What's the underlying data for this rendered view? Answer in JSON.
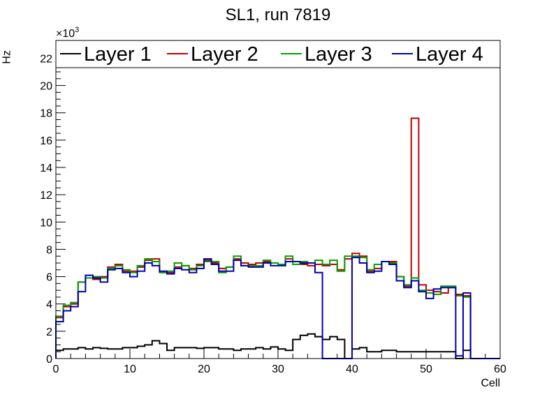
{
  "chart_data": {
    "type": "histogram-step",
    "title": "SL1, run 7819",
    "xlabel": "Cell",
    "ylabel": "Hz",
    "y_exponent_label": "×10",
    "y_exponent_power": "3",
    "xlim": [
      0,
      60
    ],
    "ylim": [
      0,
      23.3
    ],
    "bin_width": 1,
    "x_ticks": [
      0,
      10,
      20,
      30,
      40,
      50,
      60
    ],
    "x_tick_labels": [
      "0",
      "10",
      "20",
      "30",
      "40",
      "50",
      "60"
    ],
    "y_ticks": [
      0,
      2,
      4,
      6,
      8,
      10,
      12,
      14,
      16,
      18,
      20,
      22
    ],
    "y_tick_labels": [
      "0",
      "2",
      "4",
      "6",
      "8",
      "10",
      "12",
      "14",
      "16",
      "18",
      "20",
      "22"
    ],
    "legend_position": "top, full width",
    "series": [
      {
        "name": "Layer 1",
        "color": "#000000",
        "values": [
          0.6,
          0.7,
          0.7,
          0.8,
          0.7,
          0.8,
          0.75,
          0.7,
          0.7,
          0.8,
          0.8,
          0.9,
          1.0,
          1.3,
          1.1,
          0.6,
          0.8,
          0.8,
          0.8,
          0.75,
          0.8,
          0.8,
          0.7,
          0.7,
          0.6,
          0.7,
          0.7,
          0.8,
          0.7,
          0.85,
          0.7,
          0.6,
          1.4,
          1.7,
          1.8,
          1.6,
          1.4,
          1.6,
          1.4,
          0.0,
          0.7,
          0.8,
          0.5,
          0.5,
          0.6,
          0.6,
          0.5,
          0.5,
          0.5,
          0.5,
          0.5,
          0.5,
          0.5,
          0.5,
          0.0,
          0.6,
          0.0,
          0.0,
          0.0,
          0.0
        ]
      },
      {
        "name": "Layer 2",
        "color": "#c00000",
        "values": [
          3.0,
          3.8,
          4.0,
          5.6,
          5.9,
          5.8,
          6.0,
          6.7,
          6.9,
          6.4,
          6.4,
          6.7,
          7.2,
          7.3,
          6.3,
          6.3,
          6.7,
          6.8,
          6.6,
          6.9,
          7.2,
          7.0,
          6.6,
          6.7,
          7.3,
          7.0,
          6.9,
          7.0,
          7.1,
          7.0,
          6.9,
          7.3,
          7.1,
          6.9,
          6.8,
          6.9,
          6.8,
          6.9,
          6.5,
          7.3,
          7.7,
          7.5,
          6.4,
          6.6,
          7.1,
          7.1,
          6.0,
          5.3,
          17.6,
          5.4,
          5.0,
          4.9,
          4.8,
          5.2,
          4.7,
          4.6,
          0.0,
          0.0,
          0.0,
          0.0
        ]
      },
      {
        "name": "Layer 3",
        "color": "#00a000",
        "values": [
          3.1,
          3.9,
          4.1,
          5.6,
          5.9,
          6.0,
          5.9,
          6.6,
          6.8,
          6.5,
          6.3,
          6.8,
          7.3,
          7.1,
          6.3,
          6.4,
          7.0,
          6.8,
          6.5,
          6.8,
          7.1,
          7.1,
          6.3,
          6.7,
          7.5,
          6.8,
          6.8,
          6.8,
          7.2,
          7.0,
          6.9,
          7.5,
          6.9,
          7.1,
          7.0,
          7.2,
          6.9,
          7.2,
          6.4,
          7.5,
          7.5,
          7.4,
          6.5,
          6.9,
          7.1,
          7.0,
          6.0,
          5.4,
          5.9,
          5.0,
          4.8,
          4.7,
          5.3,
          5.3,
          4.6,
          4.5,
          0.0,
          0.0,
          0.0,
          0.0
        ]
      },
      {
        "name": "Layer 4",
        "color": "#0000b0",
        "values": [
          2.7,
          3.5,
          3.8,
          4.9,
          6.1,
          5.9,
          5.6,
          6.5,
          6.6,
          6.3,
          6.0,
          6.4,
          7.0,
          6.8,
          6.4,
          6.2,
          6.6,
          6.5,
          6.3,
          6.6,
          7.3,
          6.9,
          6.4,
          6.4,
          7.2,
          6.8,
          6.7,
          6.7,
          7.0,
          6.8,
          6.8,
          7.1,
          7.1,
          7.0,
          7.0,
          6.3,
          0.0,
          0.0,
          0.0,
          0.0,
          7.4,
          7.0,
          6.3,
          6.4,
          7.1,
          6.9,
          5.7,
          5.2,
          5.7,
          4.9,
          4.4,
          5.1,
          5.2,
          5.2,
          0.2,
          4.8,
          0.0,
          0.0,
          0.0,
          0.0
        ]
      }
    ]
  }
}
